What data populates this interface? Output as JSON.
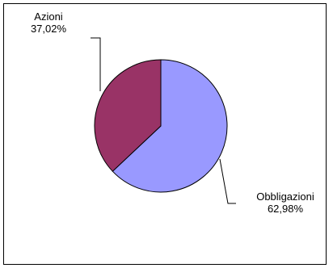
{
  "chart_data": {
    "type": "pie",
    "title": "",
    "slices": [
      {
        "label": "Obbligazioni",
        "value": 62.98,
        "value_text": "62,98%",
        "color": "#9999ff"
      },
      {
        "label": "Azioni",
        "value": 37.02,
        "value_text": "37,02%",
        "color": "#993366"
      }
    ],
    "start_angle_deg": 0,
    "direction": "clockwise",
    "legend": "none"
  }
}
